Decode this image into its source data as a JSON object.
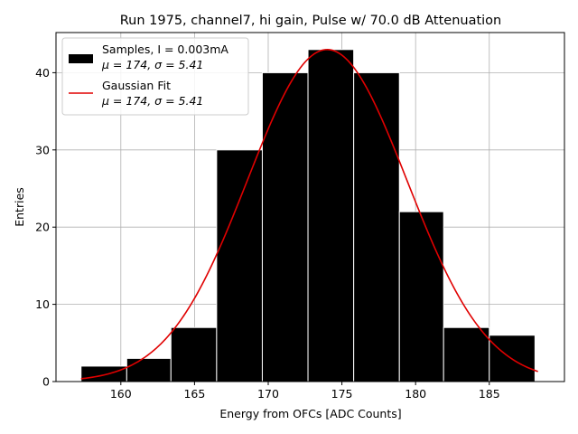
{
  "chart_data": {
    "type": "bar",
    "title": "Run 1975, channel7, hi gain, Pulse w/ 70.0 dB Attenuation",
    "xlabel": "Energy from OFCs [ADC Counts]",
    "ylabel": "Entries",
    "xlim": [
      155.6,
      190.1
    ],
    "ylim": [
      0,
      45.2
    ],
    "grid": true,
    "legend_placement": "top-left",
    "xticks": [
      160,
      165,
      170,
      175,
      180,
      185
    ],
    "yticks": [
      0,
      10,
      20,
      30,
      40
    ],
    "bins": [
      {
        "x0": 157.3,
        "x1": 160.4,
        "count": 2
      },
      {
        "x0": 160.4,
        "x1": 163.4,
        "count": 3
      },
      {
        "x0": 163.4,
        "x1": 166.5,
        "count": 7
      },
      {
        "x0": 166.5,
        "x1": 169.6,
        "count": 30
      },
      {
        "x0": 169.6,
        "x1": 172.7,
        "count": 40
      },
      {
        "x0": 172.7,
        "x1": 175.8,
        "count": 43
      },
      {
        "x0": 175.8,
        "x1": 178.9,
        "count": 40
      },
      {
        "x0": 178.9,
        "x1": 181.9,
        "count": 22
      },
      {
        "x0": 181.9,
        "x1": 185.0,
        "count": 7
      },
      {
        "x0": 185.0,
        "x1": 188.1,
        "count": 6
      }
    ],
    "fit": {
      "mu": 174,
      "sigma": 5.41,
      "amplitude": 43,
      "x_start": 157.3,
      "x_end": 188.3
    },
    "series": [
      {
        "name": "Samples, I = 0.003mA",
        "stats": "μ = 174, σ = 5.41",
        "color": "#000000"
      },
      {
        "name": "Gaussian Fit",
        "stats": "μ = 174, σ = 5.41",
        "color": "#e00000"
      }
    ]
  }
}
